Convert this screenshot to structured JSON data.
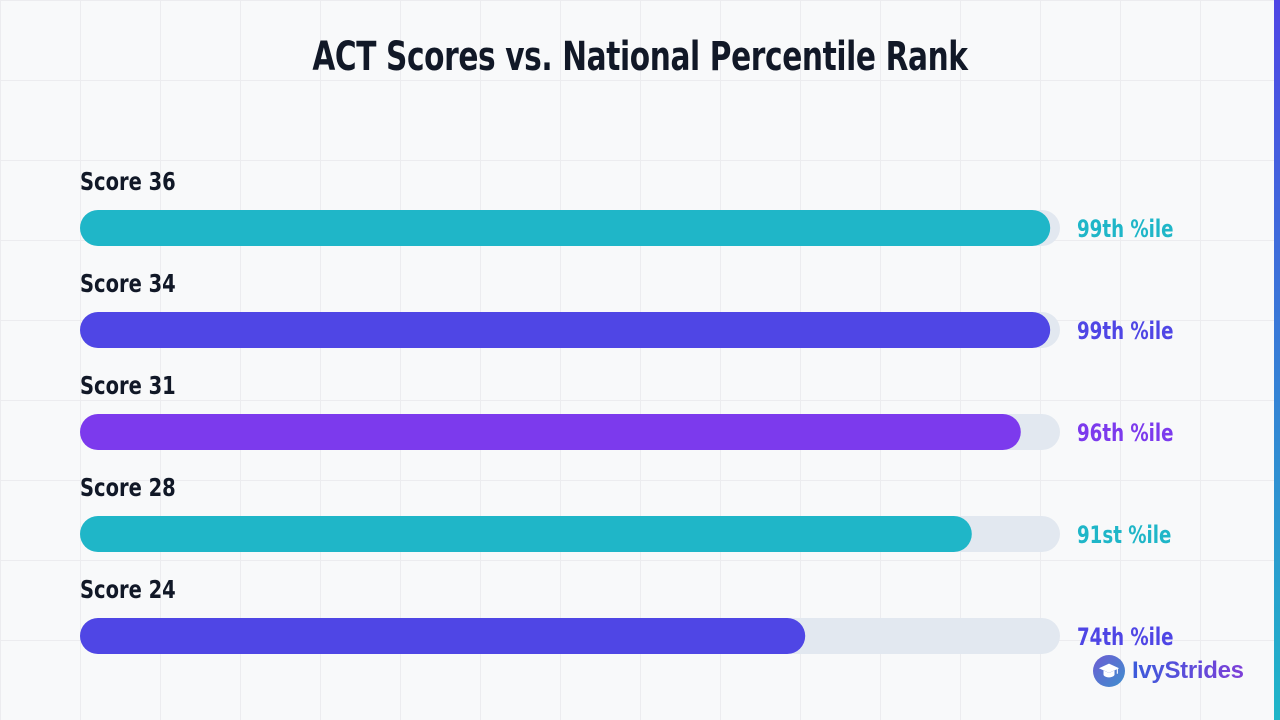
{
  "chart_data": {
    "type": "bar",
    "orientation": "horizontal",
    "title": "ACT Scores vs. National Percentile Rank",
    "categories": [
      "Score 36",
      "Score 34",
      "Score 31",
      "Score 28",
      "Score 24"
    ],
    "values": [
      99,
      99,
      96,
      91,
      74
    ],
    "value_labels": [
      "99th %ile",
      "99th %ile",
      "96th %ile",
      "91st %ile",
      "74th %ile"
    ],
    "colors": [
      "#1fb6c8",
      "#4f46e5",
      "#7c3aed",
      "#1fb6c8",
      "#4f46e5"
    ],
    "track_color": "#e2e8f0",
    "xlim": [
      0,
      100
    ],
    "grid": true,
    "legend": "none"
  },
  "brand": {
    "name": "IvyStrides",
    "icon": "graduation-cap-icon"
  }
}
